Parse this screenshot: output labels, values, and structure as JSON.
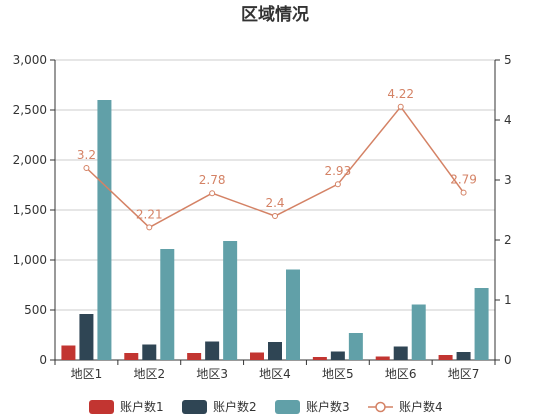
{
  "chart_data": {
    "type": "bar",
    "title": "区域情况",
    "categories": [
      "地区1",
      "地区2",
      "地区3",
      "地区4",
      "地区5",
      "地区6",
      "地区7"
    ],
    "series": [
      {
        "name": "账户数1",
        "type": "bar",
        "axis": "left",
        "color": "#c23531",
        "values": [
          145,
          70,
          70,
          75,
          30,
          35,
          50
        ]
      },
      {
        "name": "账户数2",
        "type": "bar",
        "axis": "left",
        "color": "#2f4554",
        "values": [
          460,
          155,
          185,
          180,
          85,
          135,
          80
        ]
      },
      {
        "name": "账户数3",
        "type": "bar",
        "axis": "left",
        "color": "#61a0a8",
        "values": [
          2600,
          1110,
          1190,
          905,
          270,
          555,
          720
        ]
      },
      {
        "name": "账户数4",
        "type": "line",
        "axis": "right",
        "color": "#d48265",
        "values": [
          3.2,
          2.21,
          2.78,
          2.4,
          2.93,
          4.22,
          2.79
        ]
      }
    ],
    "y_left": {
      "min": 0,
      "max": 3000,
      "ticks": [
        "0",
        "500",
        "1,000",
        "1,500",
        "2,000",
        "2,500",
        "3,000"
      ]
    },
    "y_right": {
      "min": 0,
      "max": 5,
      "ticks": [
        "0",
        "1",
        "2",
        "3",
        "4",
        "5"
      ]
    },
    "grid": true,
    "legend_position": "bottom"
  }
}
